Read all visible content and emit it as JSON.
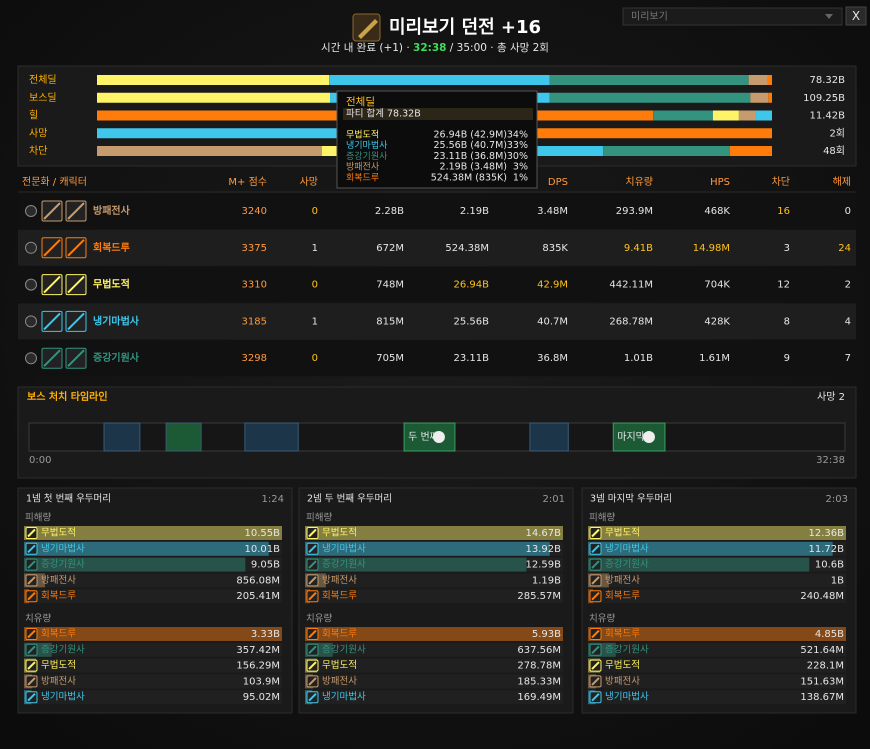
{
  "header": {
    "title": "미리보기 던전 +16",
    "subtitle_prefix": "시간 내 완료 (+1) · ",
    "time": "32:38",
    "subtitle_suffix": " / 35:00 · 총 사망 2회"
  },
  "controls": {
    "dropdown": "미리보기",
    "close": "X"
  },
  "summary": {
    "rows": [
      {
        "label": "전체딜",
        "total": "78.32B",
        "segments": [
          {
            "color": "#fff468",
            "value": 26.94
          },
          {
            "color": "#3fc7eb",
            "value": 25.56
          },
          {
            "color": "#33937f",
            "value": 23.11
          },
          {
            "color": "#c69b6d",
            "value": 2.19
          },
          {
            "color": "#ff7c0a",
            "value": 0.52
          }
        ]
      },
      {
        "label": "보스딜",
        "total": "109.25B",
        "segments": [
          {
            "color": "#fff468",
            "value": 37.7
          },
          {
            "color": "#3fc7eb",
            "value": 35.5
          },
          {
            "color": "#33937f",
            "value": 32.5
          },
          {
            "color": "#c69b6d",
            "value": 2.9
          },
          {
            "color": "#ff7c0a",
            "value": 0.6
          }
        ]
      },
      {
        "label": "힐",
        "total": "11.42B",
        "segments": [
          {
            "color": "#ff7c0a",
            "value": 9.41
          },
          {
            "color": "#33937f",
            "value": 1.01
          },
          {
            "color": "#fff468",
            "value": 0.44
          },
          {
            "color": "#c69b6d",
            "value": 0.29
          },
          {
            "color": "#3fc7eb",
            "value": 0.27
          }
        ]
      },
      {
        "label": "사망",
        "total": "2회",
        "segments": [
          {
            "color": "#3fc7eb",
            "value": 1
          },
          {
            "color": "#ff7c0a",
            "value": 1
          }
        ]
      },
      {
        "label": "차단",
        "total": "48회",
        "segments": [
          {
            "color": "#c69b6d",
            "value": 16
          },
          {
            "color": "#fff468",
            "value": 12
          },
          {
            "color": "#3fc7eb",
            "value": 8
          },
          {
            "color": "#33937f",
            "value": 9
          },
          {
            "color": "#ff7c0a",
            "value": 3
          }
        ]
      }
    ]
  },
  "tooltip": {
    "title": "전체딜",
    "total": "파티 합계 78.32B",
    "rows": [
      {
        "name": "무법도적",
        "color": "#fff468",
        "value": "26.94B (42.9M)",
        "pct": "34%"
      },
      {
        "name": "냉기마법사",
        "color": "#3fc7eb",
        "value": "25.56B (40.7M)",
        "pct": "33%"
      },
      {
        "name": "증강기원사",
        "color": "#33937f",
        "value": "23.11B (36.8M)",
        "pct": "30%"
      },
      {
        "name": "방패전사",
        "color": "#c69b6d",
        "value": "2.19B (3.48M)",
        "pct": "3%"
      },
      {
        "name": "회복드루",
        "color": "#ff7c0a",
        "value": "524.38M (835K)",
        "pct": "1%"
      }
    ]
  },
  "table": {
    "headers": [
      "전문화 / 캐릭터",
      "M+ 점수",
      "사망",
      null,
      null,
      "DPS",
      "치유량",
      "HPS",
      "차단",
      "해제"
    ],
    "rows": [
      {
        "name": "방패전사",
        "color": "#c69b6d",
        "cells": [
          "3240",
          "0",
          "2.28B",
          "2.19B",
          "3.48M",
          "293.9M",
          "468K",
          "16",
          "0"
        ],
        "highlight": [
          1,
          7
        ]
      },
      {
        "name": "회복드루",
        "color": "#ff7c0a",
        "cells": [
          "3375",
          "1",
          "672M",
          "524.38M",
          "835K",
          "9.41B",
          "14.98M",
          "3",
          "24"
        ],
        "highlight": [
          5,
          6,
          8
        ]
      },
      {
        "name": "무법도적",
        "color": "#fff468",
        "cells": [
          "3310",
          "0",
          "748M",
          "26.94B",
          "42.9M",
          "442.11M",
          "704K",
          "12",
          "2"
        ],
        "highlight": [
          1,
          3,
          4
        ]
      },
      {
        "name": "냉기마법사",
        "color": "#3fc7eb",
        "cells": [
          "3185",
          "1",
          "815M",
          "25.56B",
          "40.7M",
          "268.78M",
          "428K",
          "8",
          "4"
        ],
        "highlight": []
      },
      {
        "name": "증강기원사",
        "color": "#33937f",
        "cells": [
          "3298",
          "0",
          "705M",
          "23.11B",
          "36.8M",
          "1.01B",
          "1.61M",
          "9",
          "7"
        ],
        "highlight": [
          1
        ]
      }
    ]
  },
  "timeline": {
    "title": "보스 처치 타임라인",
    "deaths": "사망 2",
    "start": "0:00",
    "end": "32:38",
    "range": [
      0,
      1958
    ],
    "blocks": [
      {
        "start": 180,
        "end": 266,
        "color": "#1d3548"
      },
      {
        "start": 329,
        "end": 413,
        "color": "#1c5a36"
      },
      {
        "start": 518,
        "end": 646,
        "color": "#1d3548"
      },
      {
        "start": 900,
        "end": 1022,
        "color": "#1c5a36",
        "label": "두 번째"
      },
      {
        "start": 1202,
        "end": 1294,
        "color": "#1d3548"
      },
      {
        "start": 1402,
        "end": 1526,
        "color": "#1c5a36",
        "label": "마지막"
      }
    ]
  },
  "bosses": [
    {
      "title": "1넴 첫 번째 우두머리",
      "time": "1:24",
      "damage_title": "피해량",
      "heal_title": "치유량",
      "damage": [
        {
          "name": "무법도적",
          "color": "#fff468",
          "value": 10550000000,
          "label": "10.55B"
        },
        {
          "name": "냉기마법사",
          "color": "#3fc7eb",
          "value": 10010000000,
          "label": "10.01B"
        },
        {
          "name": "증강기원사",
          "color": "#33937f",
          "value": 9050000000,
          "label": "9.05B"
        },
        {
          "name": "방패전사",
          "color": "#c69b6d",
          "value": 856080000,
          "label": "856.08M"
        },
        {
          "name": "회복드루",
          "color": "#ff7c0a",
          "value": 205410000,
          "label": "205.41M"
        }
      ],
      "healing": [
        {
          "name": "회복드루",
          "color": "#ff7c0a",
          "value": 3330000000,
          "label": "3.33B"
        },
        {
          "name": "증강기원사",
          "color": "#33937f",
          "value": 357420000,
          "label": "357.42M"
        },
        {
          "name": "무법도적",
          "color": "#fff468",
          "value": 156290000,
          "label": "156.29M"
        },
        {
          "name": "방패전사",
          "color": "#c69b6d",
          "value": 103900000,
          "label": "103.9M"
        },
        {
          "name": "냉기마법사",
          "color": "#3fc7eb",
          "value": 95020000,
          "label": "95.02M"
        }
      ]
    },
    {
      "title": "2넴 두 번째 우두머리",
      "time": "2:01",
      "damage_title": "피해량",
      "heal_title": "치유량",
      "damage": [
        {
          "name": "무법도적",
          "color": "#fff468",
          "value": 14670000000,
          "label": "14.67B"
        },
        {
          "name": "냉기마법사",
          "color": "#3fc7eb",
          "value": 13920000000,
          "label": "13.92B"
        },
        {
          "name": "증강기원사",
          "color": "#33937f",
          "value": 12590000000,
          "label": "12.59B"
        },
        {
          "name": "방패전사",
          "color": "#c69b6d",
          "value": 1190000000,
          "label": "1.19B"
        },
        {
          "name": "회복드루",
          "color": "#ff7c0a",
          "value": 285570000,
          "label": "285.57M"
        }
      ],
      "healing": [
        {
          "name": "회복드루",
          "color": "#ff7c0a",
          "value": 5930000000,
          "label": "5.93B"
        },
        {
          "name": "증강기원사",
          "color": "#33937f",
          "value": 637560000,
          "label": "637.56M"
        },
        {
          "name": "무법도적",
          "color": "#fff468",
          "value": 278780000,
          "label": "278.78M"
        },
        {
          "name": "방패전사",
          "color": "#c69b6d",
          "value": 185330000,
          "label": "185.33M"
        },
        {
          "name": "냉기마법사",
          "color": "#3fc7eb",
          "value": 169490000,
          "label": "169.49M"
        }
      ]
    },
    {
      "title": "3넴 마지막 우두머리",
      "time": "2:03",
      "damage_title": "피해량",
      "heal_title": "치유량",
      "damage": [
        {
          "name": "무법도적",
          "color": "#fff468",
          "value": 12360000000,
          "label": "12.36B"
        },
        {
          "name": "냉기마법사",
          "color": "#3fc7eb",
          "value": 11720000000,
          "label": "11.72B"
        },
        {
          "name": "증강기원사",
          "color": "#33937f",
          "value": 10600000000,
          "label": "10.6B"
        },
        {
          "name": "방패전사",
          "color": "#c69b6d",
          "value": 1000000000,
          "label": "1B"
        },
        {
          "name": "회복드루",
          "color": "#ff7c0a",
          "value": 240480000,
          "label": "240.48M"
        }
      ],
      "healing": [
        {
          "name": "회복드루",
          "color": "#ff7c0a",
          "value": 4850000000,
          "label": "4.85B"
        },
        {
          "name": "증강기원사",
          "color": "#33937f",
          "value": 521640000,
          "label": "521.64M"
        },
        {
          "name": "무법도적",
          "color": "#fff468",
          "value": 228100000,
          "label": "228.1M"
        },
        {
          "name": "방패전사",
          "color": "#c69b6d",
          "value": 151630000,
          "label": "151.63M"
        },
        {
          "name": "냉기마법사",
          "color": "#3fc7eb",
          "value": 138670000,
          "label": "138.67M"
        }
      ]
    }
  ]
}
